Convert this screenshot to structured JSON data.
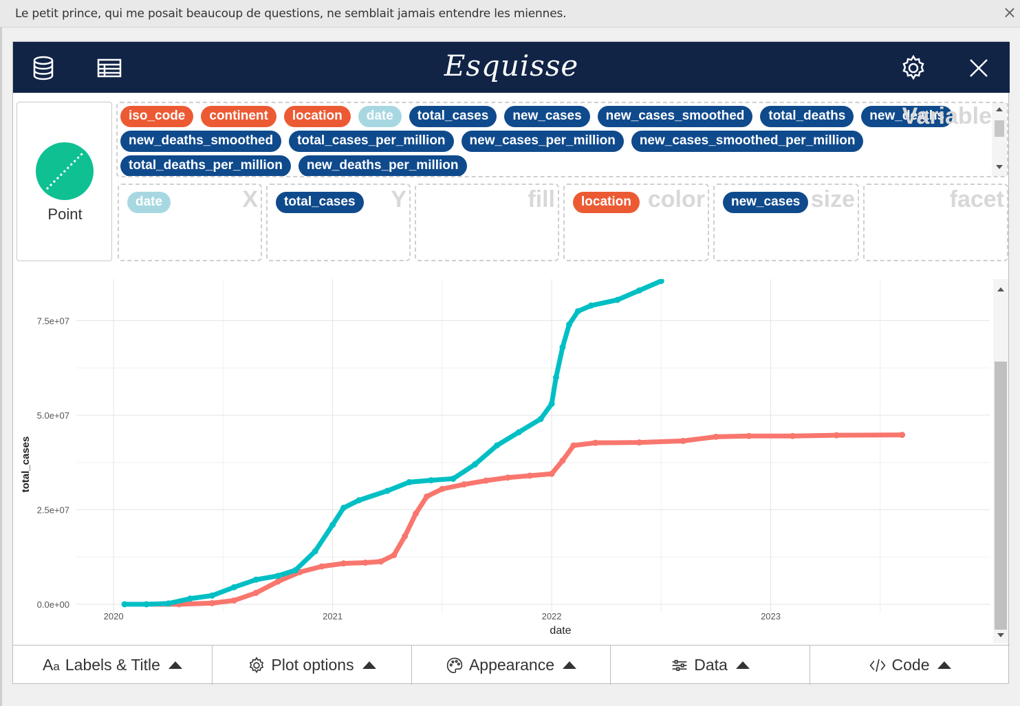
{
  "notice": {
    "text": "Le petit prince, qui me posait beaucoup de questions, ne semblait jamais entendre les miennes.",
    "close": "×"
  },
  "app": {
    "title": "Esquisse"
  },
  "geom": {
    "label": "Point"
  },
  "variables": {
    "watermark": "Variable",
    "items": [
      {
        "label": "iso_code",
        "kind": "orange"
      },
      {
        "label": "continent",
        "kind": "orange"
      },
      {
        "label": "location",
        "kind": "orange"
      },
      {
        "label": "date",
        "kind": "light"
      },
      {
        "label": "total_cases",
        "kind": "navy"
      },
      {
        "label": "new_cases",
        "kind": "navy"
      },
      {
        "label": "new_cases_smoothed",
        "kind": "navy"
      },
      {
        "label": "total_deaths",
        "kind": "navy"
      },
      {
        "label": "new_deaths",
        "kind": "navy"
      },
      {
        "label": "new_deaths_smoothed",
        "kind": "navy"
      },
      {
        "label": "total_cases_per_million",
        "kind": "navy"
      },
      {
        "label": "new_cases_per_million",
        "kind": "navy"
      },
      {
        "label": "new_cases_smoothed_per_million",
        "kind": "navy"
      },
      {
        "label": "total_deaths_per_million",
        "kind": "navy"
      },
      {
        "label": "new_deaths_per_million",
        "kind": "navy"
      }
    ]
  },
  "dropzones": {
    "x": {
      "label": "X",
      "value": "date"
    },
    "y": {
      "label": "Y",
      "value": "total_cases"
    },
    "fill": {
      "label": "fill"
    },
    "color": {
      "label": "color",
      "value": "location"
    },
    "size": {
      "label": "size",
      "value": "new_cases"
    },
    "facet": {
      "label": "facet"
    }
  },
  "controls": {
    "labels": "Labels & Title",
    "plot_options": "Plot options",
    "appearance": "Appearance",
    "data": "Data",
    "code": "Code"
  },
  "colors": {
    "navbar": "#112446",
    "series_a": "#00bfc4",
    "series_b": "#f8766d"
  },
  "chart_data": {
    "type": "scatter",
    "title": "",
    "xlabel": "date",
    "ylabel": "total_cases",
    "x_ticks": [
      {
        "value": 2020.0,
        "label": "2020"
      },
      {
        "value": 2021.0,
        "label": "2021"
      },
      {
        "value": 2022.0,
        "label": "2022"
      },
      {
        "value": 2023.0,
        "label": "2023"
      }
    ],
    "y_ticks": [
      {
        "value": 0,
        "label": "0.0e+00"
      },
      {
        "value": 25000000,
        "label": "2.5e+07"
      },
      {
        "value": 50000000,
        "label": "5.0e+07"
      },
      {
        "value": 75000000,
        "label": "7.5e+07"
      }
    ],
    "xlim": [
      2019.83,
      2024.0
    ],
    "ylim": [
      -4000000,
      86000000
    ],
    "series": [
      {
        "name": "teal",
        "color": "#00bfc4",
        "points": [
          [
            2020.05,
            0
          ],
          [
            2020.15,
            0
          ],
          [
            2020.25,
            200000
          ],
          [
            2020.35,
            1500000
          ],
          [
            2020.45,
            2300000
          ],
          [
            2020.55,
            4500000
          ],
          [
            2020.65,
            6500000
          ],
          [
            2020.75,
            7500000
          ],
          [
            2020.83,
            9000000
          ],
          [
            2020.92,
            14000000
          ],
          [
            2021.0,
            21000000
          ],
          [
            2021.05,
            25500000
          ],
          [
            2021.12,
            27500000
          ],
          [
            2021.25,
            30000000
          ],
          [
            2021.35,
            32300000
          ],
          [
            2021.45,
            32800000
          ],
          [
            2021.55,
            33200000
          ],
          [
            2021.65,
            37000000
          ],
          [
            2021.75,
            42000000
          ],
          [
            2021.85,
            45500000
          ],
          [
            2021.95,
            49000000
          ],
          [
            2022.0,
            53000000
          ],
          [
            2022.02,
            60000000
          ],
          [
            2022.05,
            68000000
          ],
          [
            2022.08,
            74000000
          ],
          [
            2022.12,
            77500000
          ],
          [
            2022.18,
            79000000
          ],
          [
            2022.3,
            80500000
          ],
          [
            2022.4,
            83000000
          ],
          [
            2022.5,
            85500000
          ]
        ]
      },
      {
        "name": "salmon",
        "color": "#f8766d",
        "points": [
          [
            2020.15,
            0
          ],
          [
            2020.3,
            0
          ],
          [
            2020.45,
            300000
          ],
          [
            2020.55,
            1000000
          ],
          [
            2020.65,
            3000000
          ],
          [
            2020.75,
            6000000
          ],
          [
            2020.85,
            8500000
          ],
          [
            2020.95,
            10000000
          ],
          [
            2021.05,
            10800000
          ],
          [
            2021.15,
            11000000
          ],
          [
            2021.22,
            11300000
          ],
          [
            2021.28,
            13000000
          ],
          [
            2021.33,
            18000000
          ],
          [
            2021.38,
            24000000
          ],
          [
            2021.43,
            28500000
          ],
          [
            2021.5,
            30500000
          ],
          [
            2021.6,
            31700000
          ],
          [
            2021.7,
            32700000
          ],
          [
            2021.8,
            33500000
          ],
          [
            2021.9,
            34000000
          ],
          [
            2022.0,
            34500000
          ],
          [
            2022.05,
            38000000
          ],
          [
            2022.1,
            42000000
          ],
          [
            2022.2,
            42700000
          ],
          [
            2022.4,
            42800000
          ],
          [
            2022.6,
            43200000
          ],
          [
            2022.75,
            44300000
          ],
          [
            2022.9,
            44500000
          ],
          [
            2023.1,
            44500000
          ],
          [
            2023.3,
            44700000
          ],
          [
            2023.6,
            44800000
          ]
        ]
      }
    ]
  }
}
